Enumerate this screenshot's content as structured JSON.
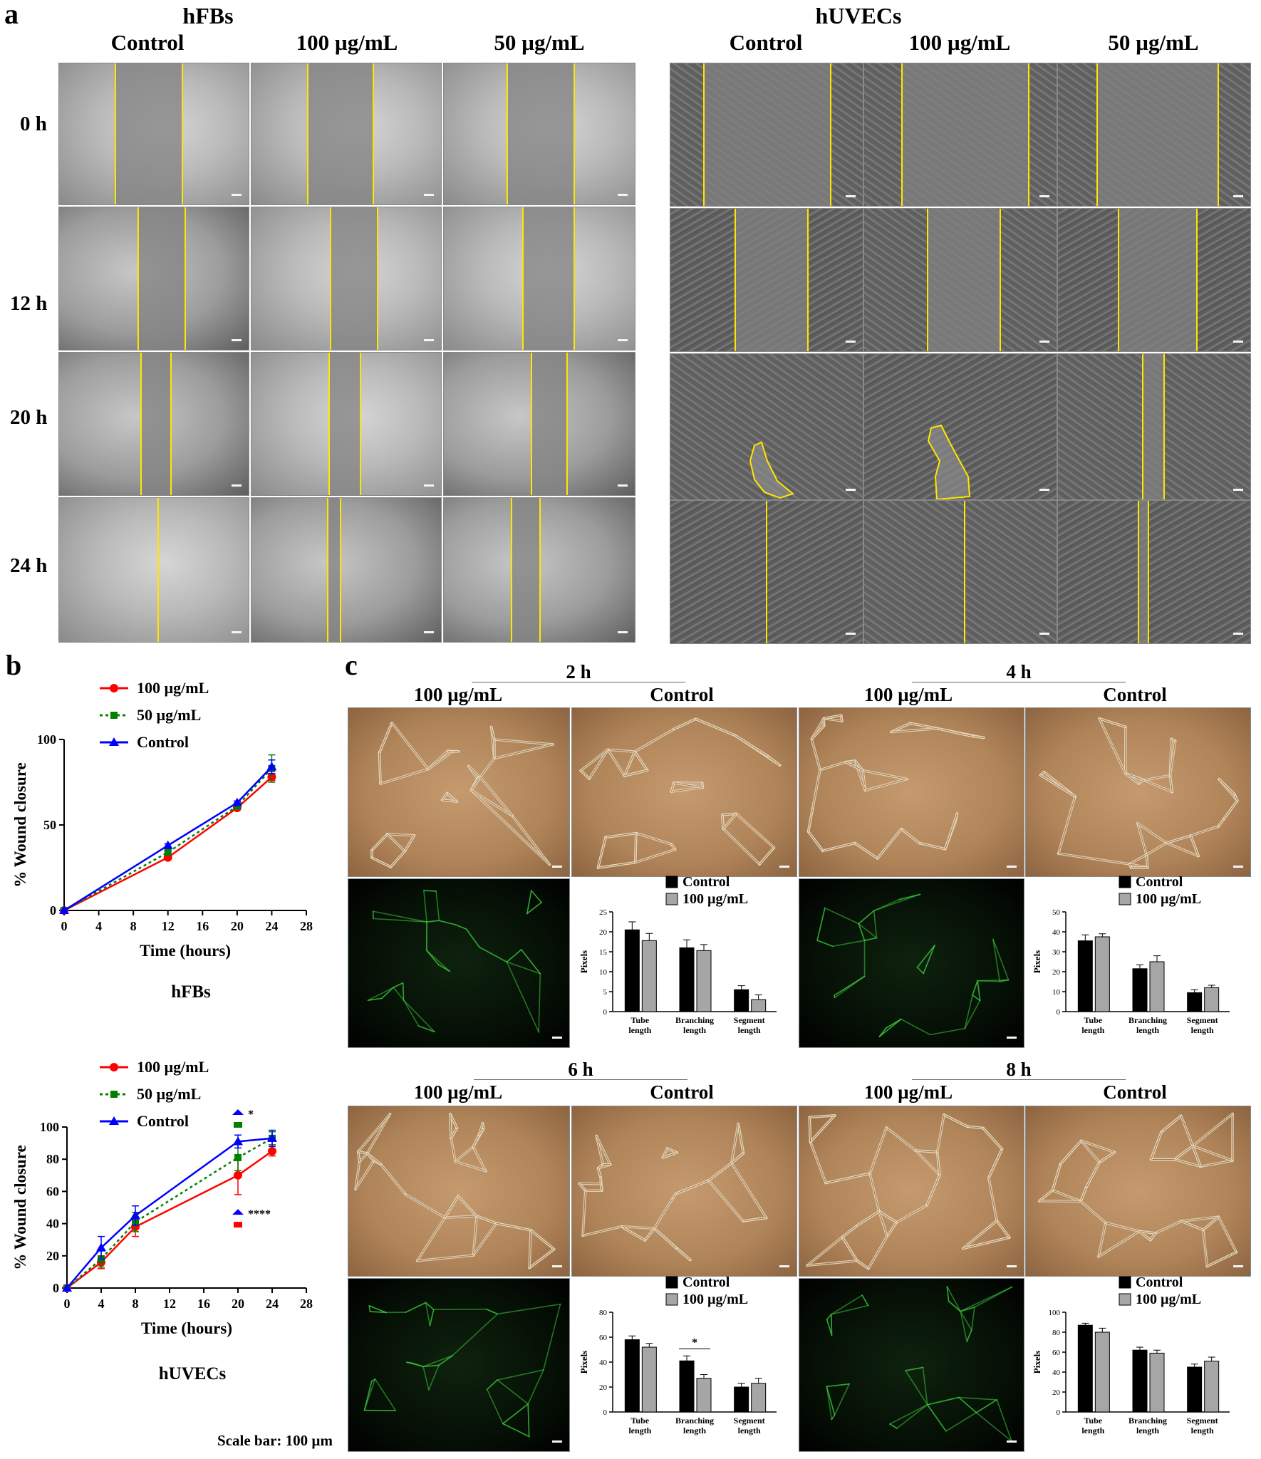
{
  "panels": {
    "a": {
      "letter": "a",
      "group1": "hFBs",
      "group2": "hUVECs",
      "cols": [
        "Control",
        "100 µg/mL",
        "50 µg/mL"
      ],
      "rows": [
        "0 h",
        "12 h",
        "20 h",
        "24 h"
      ]
    },
    "b": {
      "letter": "b"
    },
    "c": {
      "letter": "c",
      "times": [
        "2 h",
        "4 h",
        "6 h",
        "8 h"
      ],
      "cols": [
        "100 µg/mL",
        "Control"
      ]
    }
  },
  "scale_bar": "Scale bar: 100 µm",
  "chart_data": [
    {
      "type": "line",
      "caption": "hFBs",
      "xlabel": "Time (hours)",
      "ylabel": "% Wound closure",
      "xlim": [
        0,
        28
      ],
      "ylim": [
        0,
        100
      ],
      "xticks": [
        0,
        4,
        8,
        12,
        16,
        20,
        24,
        28
      ],
      "yticks": [
        0,
        50,
        100
      ],
      "x": [
        0,
        12,
        20,
        24
      ],
      "series": [
        {
          "name": "100 µg/mL",
          "color": "#ff0000",
          "values": [
            0,
            31,
            60,
            78
          ],
          "err": [
            0,
            1,
            1,
            2
          ]
        },
        {
          "name": "50 µg/mL",
          "color": "#008000",
          "values": [
            0,
            34,
            61,
            83
          ],
          "err": [
            0,
            1,
            1,
            8
          ]
        },
        {
          "name": "Control",
          "color": "#0000ff",
          "values": [
            0,
            38,
            63,
            84
          ],
          "err": [
            0,
            1,
            1,
            4
          ]
        }
      ],
      "legend": "top-left"
    },
    {
      "type": "line",
      "caption": "hUVECs",
      "xlabel": "Time (hours)",
      "ylabel": "% Wound closure",
      "xlim": [
        0,
        28
      ],
      "ylim": [
        0,
        100
      ],
      "xticks": [
        0,
        4,
        8,
        12,
        16,
        20,
        24,
        28
      ],
      "yticks": [
        0,
        20,
        40,
        60,
        80,
        100
      ],
      "x": [
        0,
        4,
        8,
        20,
        24
      ],
      "series": [
        {
          "name": "100 µg/mL",
          "color": "#ff0000",
          "values": [
            0,
            16,
            38,
            70,
            85
          ],
          "err": [
            0,
            4,
            6,
            12,
            3
          ]
        },
        {
          "name": "50 µg/mL",
          "color": "#008000",
          "values": [
            0,
            18,
            41,
            81,
            93
          ],
          "err": [
            0,
            5,
            6,
            8,
            4
          ]
        },
        {
          "name": "Control",
          "color": "#0000ff",
          "values": [
            0,
            25,
            45,
            91,
            93
          ],
          "err": [
            0,
            7,
            6,
            4,
            5
          ]
        }
      ],
      "significance": [
        {
          "symbol": "*",
          "x": 20,
          "y": 104
        },
        {
          "symbol": "****",
          "x": 20,
          "y": 42
        }
      ],
      "legend": "top-left"
    },
    {
      "type": "bar",
      "time": "2 h",
      "ylabel": "Pixels",
      "categories": [
        "Tube length",
        "Branching length",
        "Segment length"
      ],
      "ylim": [
        0,
        25
      ],
      "yticks": [
        0,
        5,
        10,
        15,
        20,
        25
      ],
      "series": [
        {
          "name": "Control",
          "color": "#000000",
          "values": [
            20.5,
            16,
            5.5
          ],
          "err": [
            2,
            2,
            1
          ]
        },
        {
          "name": "100 µg/mL",
          "color": "#a6a6a6",
          "values": [
            17.8,
            15.3,
            3
          ],
          "err": [
            1.8,
            1.5,
            1.2
          ]
        }
      ]
    },
    {
      "type": "bar",
      "time": "4 h",
      "ylabel": "Pixels",
      "categories": [
        "Tube length",
        "Branching length",
        "Segment length"
      ],
      "ylim": [
        0,
        50
      ],
      "yticks": [
        0,
        10,
        20,
        30,
        40,
        50
      ],
      "series": [
        {
          "name": "Control",
          "color": "#000000",
          "values": [
            35.5,
            21.5,
            9.5
          ],
          "err": [
            3,
            2,
            1.5
          ]
        },
        {
          "name": "100 µg/mL",
          "color": "#a6a6a6",
          "values": [
            37.5,
            25,
            12
          ],
          "err": [
            1.5,
            3,
            1.2
          ]
        }
      ]
    },
    {
      "type": "bar",
      "time": "6 h",
      "ylabel": "Pixels",
      "categories": [
        "Tube length",
        "Branching length",
        "Segment length"
      ],
      "ylim": [
        0,
        80
      ],
      "yticks": [
        0,
        20,
        40,
        60,
        80
      ],
      "series": [
        {
          "name": "Control",
          "color": "#000000",
          "values": [
            58,
            41,
            20
          ],
          "err": [
            3,
            4,
            3
          ]
        },
        {
          "name": "100 µg/mL",
          "color": "#a6a6a6",
          "values": [
            52,
            27,
            23
          ],
          "err": [
            3,
            3,
            4
          ]
        }
      ],
      "significance": [
        {
          "symbol": "*",
          "category": "Branching length"
        }
      ]
    },
    {
      "type": "bar",
      "time": "8 h",
      "ylabel": "Pixels",
      "categories": [
        "Tube length",
        "Branching length",
        "Segment length"
      ],
      "ylim": [
        0,
        100
      ],
      "yticks": [
        0,
        20,
        40,
        60,
        80,
        100
      ],
      "series": [
        {
          "name": "Control",
          "color": "#000000",
          "values": [
            87,
            62,
            45
          ],
          "err": [
            2,
            3,
            3
          ]
        },
        {
          "name": "100 µg/mL",
          "color": "#a6a6a6",
          "values": [
            80,
            59,
            51
          ],
          "err": [
            4,
            3,
            4
          ]
        }
      ]
    }
  ]
}
